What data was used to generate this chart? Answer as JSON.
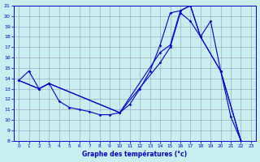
{
  "xlabel": "Graphe des températures (°c)",
  "xlim": [
    -0.5,
    23.5
  ],
  "ylim": [
    8,
    21
  ],
  "yticks": [
    8,
    9,
    10,
    11,
    12,
    13,
    14,
    15,
    16,
    17,
    18,
    19,
    20,
    21
  ],
  "xticks": [
    0,
    1,
    2,
    3,
    4,
    5,
    6,
    7,
    8,
    9,
    10,
    11,
    12,
    13,
    14,
    15,
    16,
    17,
    18,
    19,
    20,
    21,
    22,
    23
  ],
  "bg_color": "#c8eef0",
  "line_color": "#0000cc",
  "grid_color": "#9999bb",
  "series1_x": [
    0,
    1,
    2,
    3,
    4,
    5,
    6,
    7,
    8,
    9,
    10,
    11,
    12,
    13,
    14,
    15,
    16,
    17,
    18,
    19,
    20,
    21,
    22
  ],
  "series1_y": [
    13.8,
    14.7,
    13.0,
    13.5,
    11.8,
    11.2,
    11.0,
    10.8,
    10.5,
    10.5,
    10.7,
    11.5,
    13.0,
    14.7,
    17.2,
    20.3,
    20.5,
    21.0,
    18.0,
    19.5,
    14.7,
    10.3,
    8.0
  ],
  "series2_x": [
    0,
    2,
    3,
    10,
    14,
    15,
    16,
    17,
    18,
    20,
    22
  ],
  "series2_y": [
    13.8,
    13.0,
    13.5,
    10.7,
    16.5,
    17.2,
    20.5,
    21.0,
    18.0,
    14.7,
    8.0
  ],
  "series3_x": [
    0,
    2,
    3,
    10,
    14,
    15,
    16,
    17,
    18,
    20,
    22
  ],
  "series3_y": [
    13.8,
    13.0,
    13.5,
    10.7,
    15.5,
    17.0,
    20.3,
    19.5,
    18.0,
    14.7,
    8.0
  ]
}
